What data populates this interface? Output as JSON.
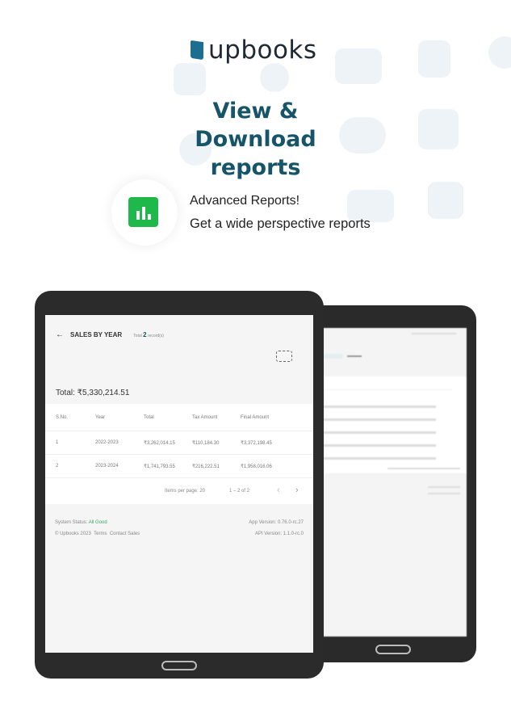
{
  "brand": {
    "name": "upbooks"
  },
  "headline": "View & Download reports",
  "feature": {
    "title": "Advanced Reports!",
    "subtitle": "Get a wide perspective reports",
    "icon": "bar-chart-icon",
    "color": "#1fb84a"
  },
  "colors": {
    "title": "#16546a",
    "status_good": "#3aa66a"
  },
  "report": {
    "title": "SALES BY YEAR",
    "records_prefix": "Total",
    "records_count": "2",
    "records_suffix": "record(s)",
    "total": "Total: ₹5,330,214.51",
    "columns": [
      "S.No.",
      "Year",
      "Total",
      "Tax Amount",
      "Final Amount"
    ],
    "rows": [
      [
        "1",
        "2022-2023",
        "₹3,262,014.15",
        "₹110,184.30",
        "₹3,372,198.45"
      ],
      [
        "2",
        "2023-2024",
        "₹1,741,793.55",
        "₹216,222.51",
        "₹1,958,016.06"
      ]
    ],
    "paginator": {
      "items_per_page": "Items per page: 20",
      "range": "1 – 2 of 2"
    },
    "footer": {
      "status_label": "System Status:",
      "status_value": "All Good",
      "copyright": "© Upbooks 2023",
      "terms": "Terms",
      "contact": "Contact Sales",
      "app_version": "App Version: 0.76.0-rc.27",
      "api_version": "API Version: 1.1.0-rc.0"
    }
  }
}
